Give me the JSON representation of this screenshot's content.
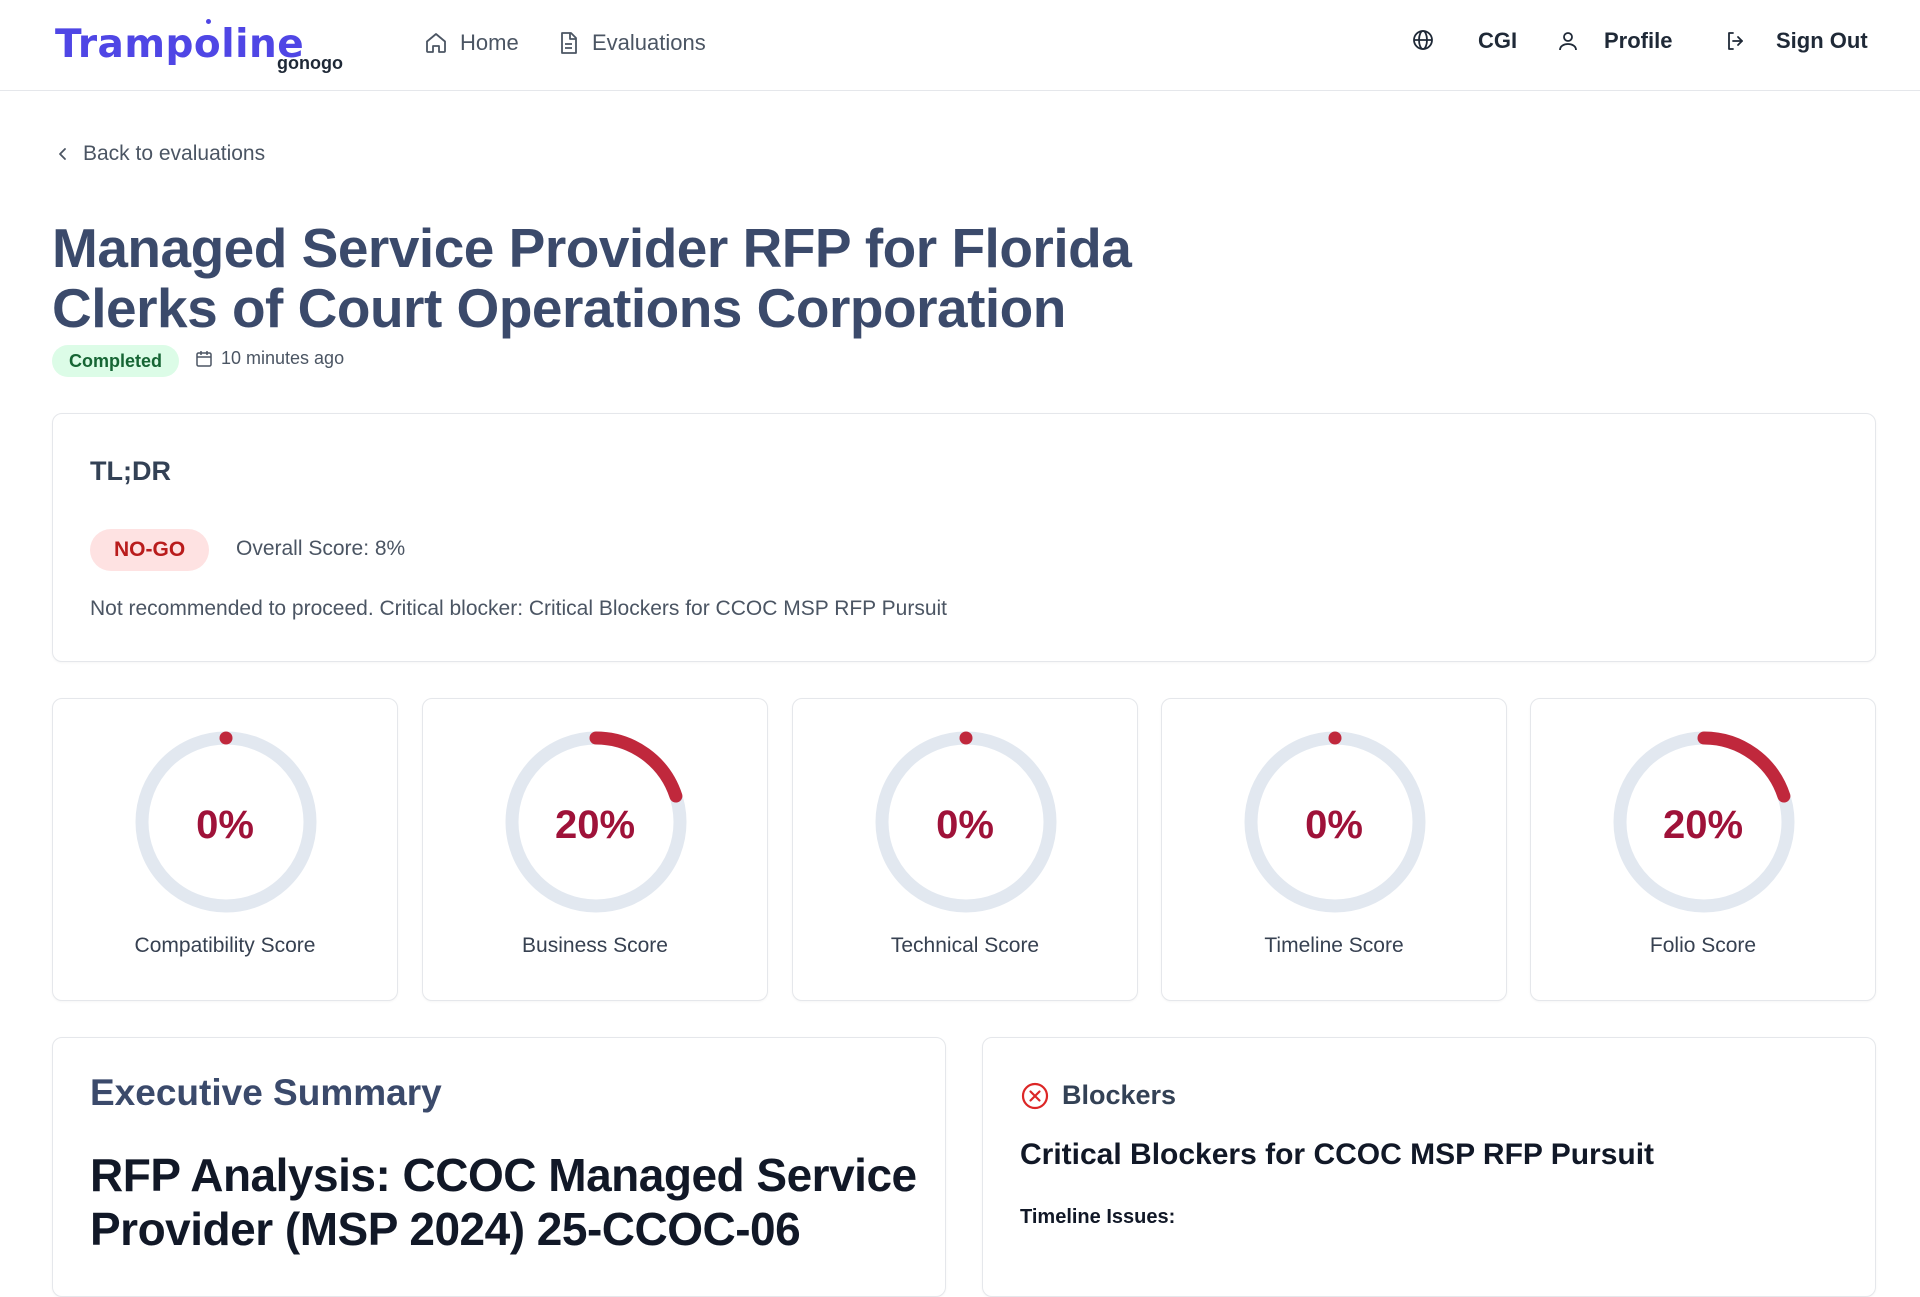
{
  "header": {
    "logo": "Trampoline",
    "logo_sub": "gonogo",
    "nav": [
      {
        "label": "Home",
        "icon": "home-icon"
      },
      {
        "label": "Evaluations",
        "icon": "document-icon"
      }
    ],
    "org": "CGI",
    "profile_label": "Profile",
    "signout_label": "Sign Out"
  },
  "back_label": "Back to evaluations",
  "page": {
    "title": "Managed Service Provider RFP for Florida Clerks of Court Operations Corporation",
    "status": "Completed",
    "timestamp": "10 minutes ago"
  },
  "tldr": {
    "title": "TL;DR",
    "verdict": "NO-GO",
    "overall": "Overall Score: 8%",
    "text": "Not recommended to proceed. Critical blocker: Critical Blockers for CCOC MSP RFP Pursuit"
  },
  "scores": [
    {
      "label": "Compatibility Score",
      "value": "0%",
      "fraction": 0.0
    },
    {
      "label": "Business Score",
      "value": "20%",
      "fraction": 0.2
    },
    {
      "label": "Technical Score",
      "value": "0%",
      "fraction": 0.0
    },
    {
      "label": "Timeline Score",
      "value": "0%",
      "fraction": 0.0
    },
    {
      "label": "Folio Score",
      "value": "20%",
      "fraction": 0.2
    }
  ],
  "executive_summary": {
    "title": "Executive Summary",
    "heading": "RFP Analysis: CCOC Managed Service Provider (MSP 2024) 25-CCOC-06"
  },
  "blockers": {
    "title": "Blockers",
    "heading": "Critical Blockers for CCOC MSP RFP Pursuit",
    "subheading": "Timeline Issues:"
  },
  "colors": {
    "brand": "#4f46e5",
    "score_arc": "#c0283c",
    "score_track": "#e2e8f0",
    "score_text": "#9f1239",
    "badge_green_bg": "#dcfce7",
    "badge_red_bg": "#fee2e2"
  }
}
